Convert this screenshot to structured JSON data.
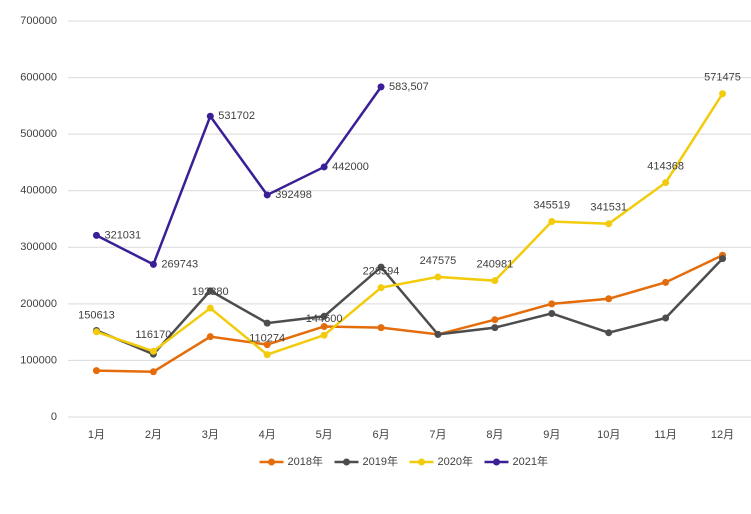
{
  "chart_data": {
    "type": "line",
    "categories": [
      "1月",
      "2月",
      "3月",
      "4月",
      "5月",
      "6月",
      "7月",
      "8月",
      "9月",
      "10月",
      "11月",
      "12月"
    ],
    "series": [
      {
        "name": "2018年",
        "color": "#e46c0a",
        "labels": false,
        "values": [
          82000,
          80000,
          142000,
          128000,
          160000,
          158000,
          146000,
          172000,
          200000,
          209000,
          238000,
          286000
        ]
      },
      {
        "name": "2019年",
        "color": "#4d4d4d",
        "labels": false,
        "values": [
          153000,
          111000,
          223000,
          166000,
          178000,
          265000,
          146000,
          158000,
          183000,
          149000,
          175000,
          280000
        ]
      },
      {
        "name": "2020年",
        "color": "#f2cc0c",
        "labels": true,
        "values": [
          150613,
          116170,
          192380,
          110274,
          144600,
          228594,
          247575,
          240981,
          345519,
          341531,
          414368,
          571475
        ]
      },
      {
        "name": "2021年",
        "color": "#3a1f96",
        "labels": true,
        "values": [
          321031,
          269743,
          531702,
          392498,
          442000,
          583507,
          null,
          null,
          null,
          null,
          null,
          null
        ],
        "value_labels": [
          "321031",
          "269743",
          "531702",
          "392498",
          "442000",
          "583,507",
          null,
          null,
          null,
          null,
          null,
          null
        ]
      }
    ],
    "ylim": [
      0,
      700000
    ],
    "yticks": [
      0,
      100000,
      200000,
      300000,
      400000,
      500000,
      600000,
      700000
    ],
    "grid": true,
    "legend": "bottom"
  }
}
